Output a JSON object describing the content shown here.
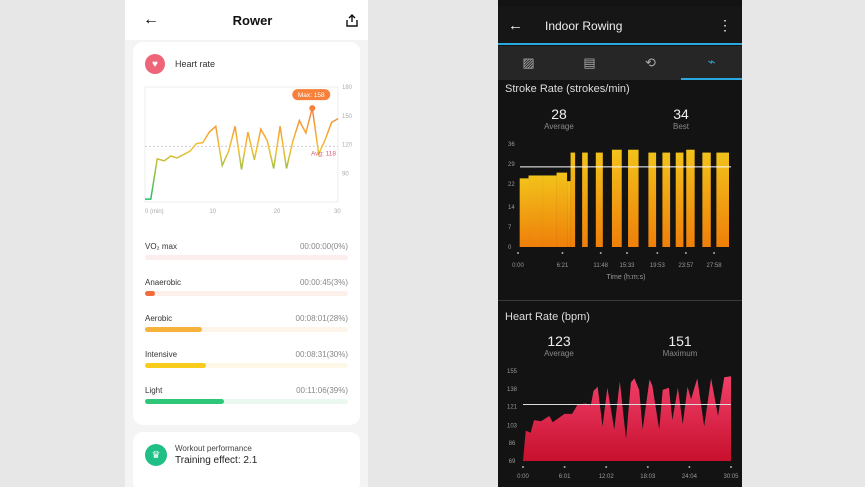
{
  "left": {
    "header": {
      "title": "Rower",
      "back_icon": "arrow-left-icon",
      "share_icon": "share-icon"
    },
    "heart_rate": {
      "title": "Heart rate",
      "icon": "heart-icon",
      "max_label": "Max: 158",
      "avg_label": "Avg: 118"
    },
    "zones": [
      {
        "label": "VO₂ max",
        "value": "00:00:00(0%)",
        "percent": 0,
        "color": "#f26b5b",
        "track": "#fdeeee"
      },
      {
        "label": "Anaerobic",
        "value": "00:00:45(3%)",
        "percent": 3,
        "color": "#f26b3a",
        "track": "#fdf0ea"
      },
      {
        "label": "Aerobic",
        "value": "00:08:01(28%)",
        "percent": 28,
        "color": "#f7b23b",
        "track": "#fdf5ea"
      },
      {
        "label": "Intensive",
        "value": "00:08:31(30%)",
        "percent": 30,
        "color": "#f9cc1c",
        "track": "#fdf8e8"
      },
      {
        "label": "Light",
        "value": "00:11:06(39%)",
        "percent": 39,
        "color": "#2ec77a",
        "track": "#eaf8f0"
      }
    ],
    "workout": {
      "title": "Workout performance",
      "effect": "Training effect: 2.1",
      "icon": "trophy-icon"
    }
  },
  "right": {
    "header": {
      "title": "Indoor Rowing",
      "back_icon": "arrow-left-icon",
      "menu_icon": "more-vertical-icon"
    },
    "tabs": [
      {
        "icon": "summary-icon"
      },
      {
        "icon": "details-icon"
      },
      {
        "icon": "laps-icon"
      },
      {
        "icon": "charts-icon",
        "active": true
      }
    ],
    "stroke": {
      "title": "Stroke Rate (strokes/min)",
      "avg": "28",
      "avg_label": "Average",
      "best": "34",
      "best_label": "Best"
    },
    "hr": {
      "title": "Heart Rate (bpm)",
      "avg": "123",
      "avg_label": "Average",
      "max": "151",
      "max_label": "Maximum"
    }
  },
  "chart_data": [
    {
      "type": "line",
      "xlabel": "",
      "ylabel": "",
      "x_ticks": [
        "0 (min)",
        "10",
        "20",
        "30"
      ],
      "y_ticks": [
        "180",
        "150",
        "120",
        "90"
      ],
      "xlim": [
        0,
        30
      ],
      "ylim": [
        60,
        180
      ],
      "average": 118,
      "max": 158,
      "x": [
        0,
        0.9,
        1.9,
        3,
        4,
        5,
        7,
        8,
        9,
        10,
        11,
        12,
        13,
        14,
        15,
        16,
        17,
        18,
        19,
        20,
        21,
        22,
        23,
        24,
        25,
        26,
        27,
        28,
        29,
        30
      ],
      "values": [
        63,
        63,
        105,
        103,
        108,
        106,
        113,
        121,
        122,
        133,
        139,
        98,
        113,
        139,
        94,
        133,
        104,
        136,
        124,
        95,
        139,
        95,
        124,
        145,
        132,
        158,
        110,
        125,
        143,
        147
      ]
    },
    {
      "type": "bar",
      "xlabel": "Time (h:m:s)",
      "x_ticks": [
        "0:00",
        "6:21",
        "11:48",
        "15:33",
        "19:53",
        "23:57",
        "27:58"
      ],
      "y_ticks": [
        "36",
        "29",
        "22",
        "14",
        "7",
        "0"
      ],
      "ylim": [
        0,
        36
      ],
      "xlim": [
        0,
        30.1
      ],
      "average": 28,
      "segments": [
        [
          0.24,
          1.5,
          24
        ],
        [
          1.5,
          3.5,
          25
        ],
        [
          3.5,
          5.5,
          25
        ],
        [
          5.5,
          7.0,
          26
        ],
        [
          7.0,
          7.5,
          23
        ],
        [
          7.5,
          8.15,
          33
        ],
        [
          9.15,
          9.95,
          33
        ],
        [
          11.1,
          12.1,
          33
        ],
        [
          13.4,
          14.8,
          34
        ],
        [
          15.7,
          17.2,
          34
        ],
        [
          18.6,
          19.7,
          33
        ],
        [
          20.6,
          21.7,
          33
        ],
        [
          22.5,
          23.6,
          33
        ],
        [
          24.0,
          25.2,
          34
        ],
        [
          26.3,
          27.5,
          33
        ],
        [
          28.3,
          30.1,
          33
        ]
      ]
    },
    {
      "type": "area",
      "x_ticks": [
        "0:00",
        "6:01",
        "12:02",
        "18:03",
        "24:04",
        "30:05"
      ],
      "y_ticks": [
        "155",
        "138",
        "121",
        "103",
        "86",
        "69"
      ],
      "ylim": [
        69,
        155
      ],
      "xlim": [
        0,
        30.08
      ],
      "average": 123,
      "x": [
        0,
        0.4,
        1.1,
        1.6,
        2.6,
        3.8,
        4.3,
        6,
        7.1,
        7.9,
        9.1,
        9.8,
        10.2,
        10.8,
        11.5,
        12.2,
        13.2,
        14,
        14.9,
        15.6,
        16.1,
        16.8,
        17.3,
        18.3,
        18.7,
        19.7,
        20.2,
        21.1,
        21.6,
        22.4,
        23.1,
        23.8,
        24.3,
        25.2,
        26.2,
        27.2,
        28.2,
        29.1,
        30.08
      ],
      "values": [
        69,
        98,
        96,
        108,
        107,
        112,
        106,
        114,
        114,
        123,
        124,
        122,
        136,
        140,
        102,
        139,
        99,
        145,
        90,
        144,
        148,
        137,
        99,
        147,
        141,
        99,
        137,
        139,
        108,
        139,
        104,
        140,
        128,
        148,
        102,
        148,
        112,
        149,
        150
      ]
    }
  ]
}
